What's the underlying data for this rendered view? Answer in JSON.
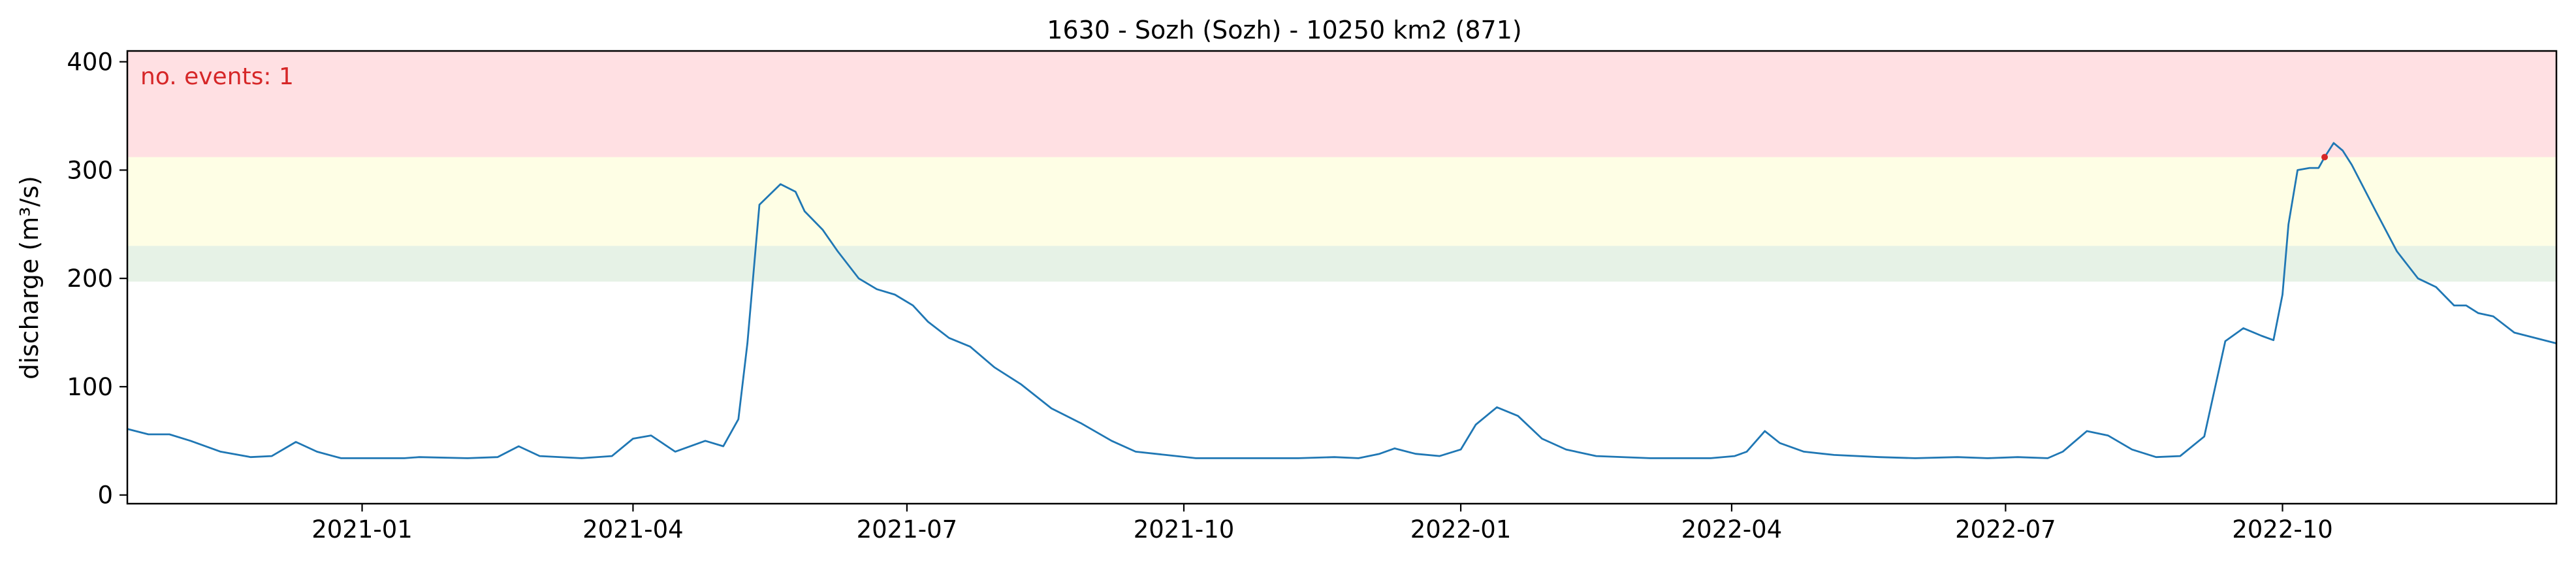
{
  "chart_data": {
    "type": "line",
    "title": "1630 - Sozh (Sozh) - 10250 km2 (871)",
    "xlabel": "",
    "ylabel": "discharge (m³/s)",
    "xlim": [
      "2020-10-15",
      "2022-12-31"
    ],
    "ylim": [
      -8,
      410
    ],
    "x_ticks": [
      "2021-01-01",
      "2021-04-01",
      "2021-07-01",
      "2021-10-01",
      "2022-01-01",
      "2022-04-01",
      "2022-07-01",
      "2022-10-01"
    ],
    "x_tick_labels": [
      "2021-01",
      "2021-04",
      "2021-07",
      "2021-10",
      "2022-01",
      "2022-04",
      "2022-07",
      "2022-10"
    ],
    "y_ticks": [
      0,
      100,
      200,
      300,
      400
    ],
    "y_tick_labels": [
      "0",
      "100",
      "200",
      "300",
      "400"
    ],
    "grid": false,
    "annotation": "no. events: 1",
    "annotation_color": "#d62728",
    "threshold_bands": [
      {
        "from": 312,
        "to": 410,
        "color": "#ffe0e3"
      },
      {
        "from": 230,
        "to": 312,
        "color": "#fefee5"
      },
      {
        "from": 197,
        "to": 230,
        "color": "#e6f2e6"
      }
    ],
    "series": [
      {
        "color": "#1f77b4",
        "points": [
          [
            "2020-10-15",
            61
          ],
          [
            "2020-10-22",
            56
          ],
          [
            "2020-10-29",
            56
          ],
          [
            "2020-11-05",
            50
          ],
          [
            "2020-11-15",
            40
          ],
          [
            "2020-11-25",
            35
          ],
          [
            "2020-12-02",
            36
          ],
          [
            "2020-12-10",
            49
          ],
          [
            "2020-12-17",
            40
          ],
          [
            "2020-12-25",
            34
          ],
          [
            "2021-01-15",
            34
          ],
          [
            "2021-01-20",
            35
          ],
          [
            "2021-02-05",
            34
          ],
          [
            "2021-02-15",
            35
          ],
          [
            "2021-02-22",
            45
          ],
          [
            "2021-03-01",
            36
          ],
          [
            "2021-03-15",
            34
          ],
          [
            "2021-03-25",
            36
          ],
          [
            "2021-04-01",
            52
          ],
          [
            "2021-04-07",
            55
          ],
          [
            "2021-04-15",
            40
          ],
          [
            "2021-04-25",
            50
          ],
          [
            "2021-05-01",
            45
          ],
          [
            "2021-05-06",
            70
          ],
          [
            "2021-05-09",
            140
          ],
          [
            "2021-05-13",
            268
          ],
          [
            "2021-05-20",
            287
          ],
          [
            "2021-05-25",
            280
          ],
          [
            "2021-05-28",
            262
          ],
          [
            "2021-06-03",
            245
          ],
          [
            "2021-06-08",
            225
          ],
          [
            "2021-06-15",
            200
          ],
          [
            "2021-06-21",
            190
          ],
          [
            "2021-06-27",
            185
          ],
          [
            "2021-07-03",
            175
          ],
          [
            "2021-07-08",
            160
          ],
          [
            "2021-07-15",
            145
          ],
          [
            "2021-07-22",
            137
          ],
          [
            "2021-07-30",
            118
          ],
          [
            "2021-08-08",
            102
          ],
          [
            "2021-08-18",
            80
          ],
          [
            "2021-08-28",
            66
          ],
          [
            "2021-09-07",
            50
          ],
          [
            "2021-09-15",
            40
          ],
          [
            "2021-09-25",
            37
          ],
          [
            "2021-10-05",
            34
          ],
          [
            "2021-10-20",
            34
          ],
          [
            "2021-11-08",
            34
          ],
          [
            "2021-11-20",
            35
          ],
          [
            "2021-11-28",
            34
          ],
          [
            "2021-12-05",
            38
          ],
          [
            "2021-12-10",
            43
          ],
          [
            "2021-12-17",
            38
          ],
          [
            "2021-12-25",
            36
          ],
          [
            "2022-01-01",
            42
          ],
          [
            "2022-01-06",
            65
          ],
          [
            "2022-01-13",
            81
          ],
          [
            "2022-01-20",
            73
          ],
          [
            "2022-01-28",
            52
          ],
          [
            "2022-02-05",
            42
          ],
          [
            "2022-02-15",
            36
          ],
          [
            "2022-03-05",
            34
          ],
          [
            "2022-03-25",
            34
          ],
          [
            "2022-04-02",
            36
          ],
          [
            "2022-04-06",
            40
          ],
          [
            "2022-04-12",
            59
          ],
          [
            "2022-04-17",
            48
          ],
          [
            "2022-04-25",
            40
          ],
          [
            "2022-05-05",
            37
          ],
          [
            "2022-05-20",
            35
          ],
          [
            "2022-06-01",
            34
          ],
          [
            "2022-06-15",
            35
          ],
          [
            "2022-06-25",
            34
          ],
          [
            "2022-07-05",
            35
          ],
          [
            "2022-07-15",
            34
          ],
          [
            "2022-07-20",
            40
          ],
          [
            "2022-07-28",
            59
          ],
          [
            "2022-08-04",
            55
          ],
          [
            "2022-08-12",
            42
          ],
          [
            "2022-08-20",
            35
          ],
          [
            "2022-08-28",
            36
          ],
          [
            "2022-09-05",
            54
          ],
          [
            "2022-09-12",
            142
          ],
          [
            "2022-09-18",
            154
          ],
          [
            "2022-09-24",
            147
          ],
          [
            "2022-09-28",
            143
          ],
          [
            "2022-10-01",
            185
          ],
          [
            "2022-10-03",
            250
          ],
          [
            "2022-10-06",
            300
          ],
          [
            "2022-10-10",
            302
          ],
          [
            "2022-10-13",
            302
          ],
          [
            "2022-10-15",
            312
          ],
          [
            "2022-10-18",
            325
          ],
          [
            "2022-10-21",
            318
          ],
          [
            "2022-10-24",
            305
          ],
          [
            "2022-11-01",
            262
          ],
          [
            "2022-11-08",
            225
          ],
          [
            "2022-11-15",
            200
          ],
          [
            "2022-11-21",
            192
          ],
          [
            "2022-11-27",
            175
          ],
          [
            "2022-12-01",
            175
          ],
          [
            "2022-12-05",
            168
          ],
          [
            "2022-12-10",
            165
          ],
          [
            "2022-12-17",
            150
          ],
          [
            "2022-12-31",
            140
          ]
        ]
      }
    ],
    "events": [
      {
        "x": "2022-10-15",
        "y": 312,
        "color": "#d62728"
      }
    ]
  }
}
